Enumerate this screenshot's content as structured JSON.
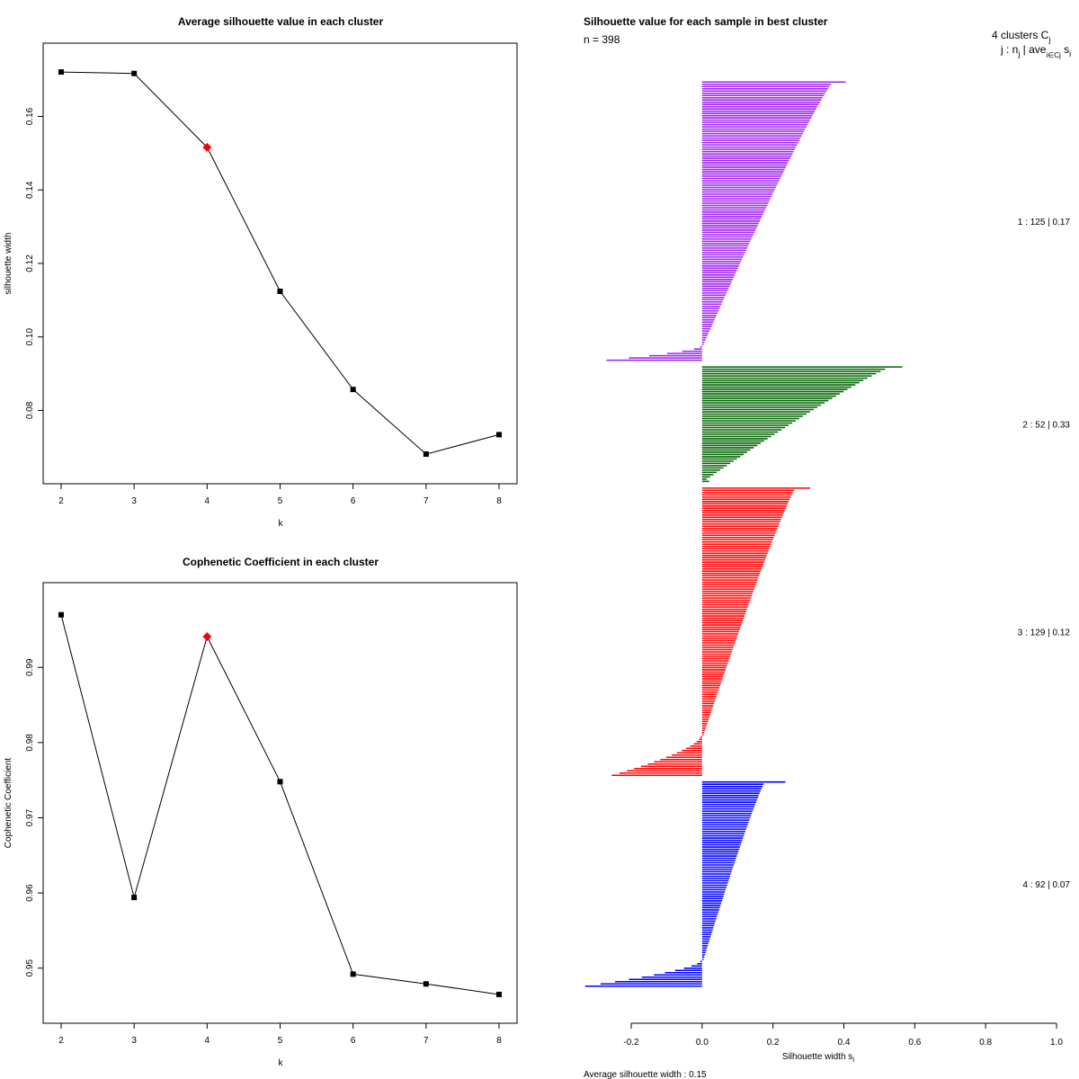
{
  "chart_data": [
    {
      "type": "line",
      "title": "Average silhouette value in each cluster",
      "xlabel": "k",
      "ylabel": "silhouette width",
      "x": [
        2,
        3,
        4,
        5,
        6,
        7,
        8
      ],
      "y": [
        0.1721,
        0.1717,
        0.1516,
        0.1124,
        0.0857,
        0.0681,
        0.0734
      ],
      "highlight_k": 4,
      "highlight_color": "#ff0000",
      "xlim": [
        2,
        8
      ],
      "ylim": [
        0.0642,
        0.1753
      ],
      "xticks": [
        "2",
        "3",
        "4",
        "5",
        "6",
        "7",
        "8"
      ],
      "yticks": [
        "0.08",
        "0.10",
        "0.12",
        "0.14",
        "0.16"
      ],
      "ytick_values": [
        0.08,
        0.1,
        0.12,
        0.14,
        0.16
      ]
    },
    {
      "type": "line",
      "title": "Cophenetic Coefficient in each cluster",
      "xlabel": "k",
      "ylabel": "Cophenetic Coefficient",
      "x": [
        2,
        3,
        4,
        5,
        6,
        7,
        8
      ],
      "y": [
        0.997,
        0.9594,
        0.9941,
        0.9748,
        0.9492,
        0.9479,
        0.9465
      ],
      "highlight_k": 4,
      "highlight_color": "#ff0000",
      "xlim": [
        2,
        8
      ],
      "ylim": [
        0.9447,
        0.999
      ],
      "xticks": [
        "2",
        "3",
        "4",
        "5",
        "6",
        "7",
        "8"
      ],
      "yticks": [
        "0.95",
        "0.96",
        "0.97",
        "0.98",
        "0.99"
      ],
      "ytick_values": [
        0.95,
        0.96,
        0.97,
        0.98,
        0.99
      ]
    },
    {
      "type": "bar",
      "orientation": "horizontal",
      "title": "Silhouette value for each sample in best cluster",
      "n_label": "n = 398",
      "xlabel": "Silhouette width s",
      "xlabel_sub": "i",
      "xlim": [
        -0.2,
        1.0
      ],
      "xticks": [
        "-0.2",
        "0.0",
        "0.2",
        "0.4",
        "0.6",
        "0.8",
        "1.0"
      ],
      "xtick_values": [
        -0.2,
        0.0,
        0.2,
        0.4,
        0.6,
        0.8,
        1.0
      ],
      "header_line1": "4  clusters  C",
      "header_line1_sub": "j",
      "header_line2": "j :  n",
      "header_line2_sub": "j",
      "header_line2_rest": " | ave",
      "header_line2_sub2": "i∈Cj",
      "header_line2_end": " s",
      "header_line2_sub3": "i",
      "average_label": "Average silhouette width :  0.15",
      "clusters": [
        {
          "id": 1,
          "size": 125,
          "avg": 0.17,
          "color": "#a020f0",
          "label": "1 :   125  |  0.17",
          "max": 0.405,
          "peak_pos": 0.38,
          "min": -0.27,
          "num_negative": 7
        },
        {
          "id": 2,
          "size": 52,
          "avg": 0.33,
          "color": "#006400",
          "label": "2 :   52  |  0.33",
          "max": 0.565,
          "peak_pos": 0.55,
          "min": 0.02,
          "num_negative": 0
        },
        {
          "id": 3,
          "size": 129,
          "avg": 0.12,
          "color": "#ff0000",
          "label": "3 :   129  |  0.12",
          "max": 0.305,
          "peak_pos": 0.27,
          "min": -0.255,
          "num_negative": 18
        },
        {
          "id": 4,
          "size": 92,
          "avg": 0.07,
          "color": "#0000ff",
          "label": "4 :   92  |  0.07",
          "max": 0.235,
          "peak_pos": 0.18,
          "min": -0.33,
          "num_negative": 12
        }
      ]
    }
  ]
}
